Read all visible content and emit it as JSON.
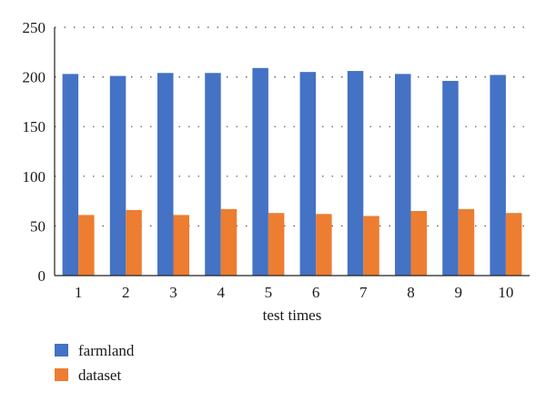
{
  "chart_data": {
    "type": "bar",
    "categories": [
      "1",
      "2",
      "3",
      "4",
      "5",
      "6",
      "7",
      "8",
      "9",
      "10"
    ],
    "series": [
      {
        "name": "farmland",
        "color": "#4472C4",
        "values": [
          203,
          201,
          204,
          204,
          209,
          205,
          206,
          203,
          196,
          202
        ]
      },
      {
        "name": "dataset",
        "color": "#ED7D31",
        "values": [
          61,
          66,
          61,
          67,
          63,
          62,
          60,
          65,
          67,
          63
        ]
      }
    ],
    "title": "",
    "xlabel": "test times",
    "ylabel": "",
    "ylim": [
      0,
      250
    ],
    "yticks": [
      0,
      50,
      100,
      150,
      200,
      250
    ],
    "grid": "horizontal dotted",
    "legend_position": "bottom-left"
  }
}
